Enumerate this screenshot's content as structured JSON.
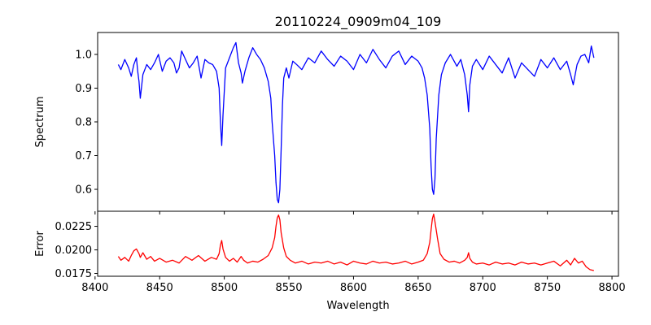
{
  "chart_data": [
    {
      "type": "line",
      "title": "20110224_0909m04_109",
      "ylabel": "Spectrum",
      "xlabel": "",
      "xlim": [
        8402,
        8805
      ],
      "ylim": [
        0.535,
        1.065
      ],
      "xticks": [
        8400,
        8450,
        8500,
        8550,
        8600,
        8650,
        8700,
        8750,
        8800
      ],
      "xtick_labels_visible": false,
      "yticks": [
        0.6,
        0.7,
        0.8,
        0.9,
        1.0
      ],
      "ytick_labels": [
        "0.6",
        "0.7",
        "0.8",
        "0.9",
        "1.0"
      ],
      "grid": false,
      "series": [
        {
          "color": "#0000ff",
          "x": [
            8418,
            8420,
            8423,
            8426,
            8428,
            8430,
            8432,
            8433,
            8434,
            8435,
            8437,
            8440,
            8443,
            8446,
            8449,
            8452,
            8455,
            8458,
            8461,
            8463,
            8465,
            8467,
            8470,
            8473,
            8476,
            8479,
            8482,
            8485,
            8488,
            8491,
            8494,
            8496,
            8497,
            8498,
            8499,
            8501,
            8504,
            8507,
            8509,
            8511,
            8513,
            8514,
            8516,
            8519,
            8522,
            8525,
            8528,
            8531,
            8534,
            8536,
            8537,
            8539,
            8540,
            8541,
            8542,
            8543,
            8544,
            8545,
            8546,
            8548,
            8550,
            8553,
            8556,
            8560,
            8565,
            8570,
            8575,
            8580,
            8585,
            8590,
            8595,
            8600,
            8605,
            8610,
            8615,
            8620,
            8625,
            8630,
            8635,
            8640,
            8645,
            8650,
            8653,
            8655,
            8657,
            8659,
            8660,
            8661,
            8662,
            8663,
            8664,
            8666,
            8668,
            8671,
            8675,
            8680,
            8683,
            8686,
            8688,
            8689,
            8690,
            8692,
            8695,
            8700,
            8705,
            8710,
            8715,
            8720,
            8725,
            8730,
            8735,
            8740,
            8745,
            8750,
            8755,
            8760,
            8765,
            8768,
            8770,
            8773,
            8776,
            8779,
            8782,
            8784,
            8786
          ],
          "y": [
            0.97,
            0.955,
            0.985,
            0.96,
            0.935,
            0.97,
            0.99,
            0.95,
            0.92,
            0.87,
            0.94,
            0.97,
            0.955,
            0.975,
            1.0,
            0.95,
            0.98,
            0.99,
            0.975,
            0.945,
            0.96,
            1.01,
            0.985,
            0.96,
            0.975,
            0.995,
            0.93,
            0.985,
            0.975,
            0.97,
            0.95,
            0.9,
            0.8,
            0.73,
            0.82,
            0.96,
            0.99,
            1.02,
            1.035,
            0.975,
            0.945,
            0.915,
            0.95,
            0.99,
            1.02,
            1.0,
            0.985,
            0.96,
            0.92,
            0.87,
            0.8,
            0.7,
            0.62,
            0.57,
            0.56,
            0.6,
            0.72,
            0.85,
            0.93,
            0.96,
            0.93,
            0.98,
            0.97,
            0.955,
            0.99,
            0.975,
            1.01,
            0.985,
            0.965,
            0.995,
            0.98,
            0.955,
            1.0,
            0.975,
            1.015,
            0.985,
            0.96,
            0.995,
            1.01,
            0.97,
            0.995,
            0.98,
            0.96,
            0.93,
            0.88,
            0.78,
            0.67,
            0.6,
            0.585,
            0.63,
            0.75,
            0.88,
            0.94,
            0.975,
            1.0,
            0.965,
            0.985,
            0.94,
            0.88,
            0.83,
            0.91,
            0.965,
            0.985,
            0.955,
            0.995,
            0.97,
            0.945,
            0.99,
            0.93,
            0.975,
            0.955,
            0.935,
            0.985,
            0.96,
            0.99,
            0.955,
            0.98,
            0.94,
            0.91,
            0.97,
            0.995,
            1.0,
            0.975,
            1.025,
            0.99
          ]
        }
      ]
    },
    {
      "type": "line",
      "title": "",
      "ylabel": "Error",
      "xlabel": "Wavelength",
      "xlim": [
        8402,
        8805
      ],
      "ylim": [
        0.0172,
        0.0241
      ],
      "xticks": [
        8400,
        8450,
        8500,
        8550,
        8600,
        8650,
        8700,
        8750,
        8800
      ],
      "xtick_labels": [
        "8400",
        "8450",
        "8500",
        "8550",
        "8600",
        "8650",
        "8700",
        "8750",
        "8800"
      ],
      "yticks": [
        0.0175,
        0.02,
        0.0225
      ],
      "ytick_labels": [
        "0.0175",
        "0.0200",
        "0.0225"
      ],
      "grid": false,
      "series": [
        {
          "color": "#ff0000",
          "x": [
            8418,
            8420,
            8423,
            8426,
            8428,
            8430,
            8432,
            8434,
            8435,
            8437,
            8440,
            8443,
            8446,
            8450,
            8455,
            8460,
            8465,
            8470,
            8475,
            8480,
            8485,
            8490,
            8494,
            8496,
            8497,
            8498,
            8499,
            8501,
            8504,
            8507,
            8510,
            8513,
            8515,
            8518,
            8522,
            8526,
            8530,
            8534,
            8537,
            8539,
            8540,
            8541,
            8542,
            8543,
            8544,
            8546,
            8548,
            8551,
            8555,
            8560,
            8565,
            8570,
            8575,
            8580,
            8585,
            8590,
            8595,
            8600,
            8605,
            8610,
            8615,
            8620,
            8625,
            8630,
            8635,
            8640,
            8645,
            8650,
            8654,
            8657,
            8659,
            8660,
            8661,
            8662,
            8663,
            8665,
            8667,
            8670,
            8674,
            8678,
            8682,
            8686,
            8688,
            8689,
            8690,
            8692,
            8695,
            8700,
            8705,
            8710,
            8715,
            8720,
            8725,
            8730,
            8735,
            8740,
            8745,
            8750,
            8755,
            8760,
            8765,
            8768,
            8771,
            8774,
            8777,
            8780,
            8783,
            8786
          ],
          "y": [
            0.0193,
            0.0189,
            0.0192,
            0.0188,
            0.0194,
            0.0199,
            0.0201,
            0.0196,
            0.0192,
            0.0197,
            0.019,
            0.0193,
            0.0188,
            0.0191,
            0.0187,
            0.0189,
            0.0186,
            0.0193,
            0.0189,
            0.0194,
            0.0188,
            0.0192,
            0.019,
            0.0196,
            0.0205,
            0.021,
            0.0201,
            0.0192,
            0.0188,
            0.0191,
            0.0187,
            0.0193,
            0.0189,
            0.0186,
            0.0188,
            0.0187,
            0.019,
            0.0194,
            0.0202,
            0.0213,
            0.0225,
            0.0234,
            0.0237,
            0.0232,
            0.0218,
            0.0202,
            0.0193,
            0.0189,
            0.0186,
            0.0188,
            0.0185,
            0.0187,
            0.0186,
            0.0188,
            0.0185,
            0.0187,
            0.0184,
            0.0188,
            0.0186,
            0.0185,
            0.0188,
            0.0186,
            0.0187,
            0.0185,
            0.0186,
            0.0188,
            0.0185,
            0.0187,
            0.0189,
            0.0196,
            0.0208,
            0.0221,
            0.0233,
            0.0238,
            0.023,
            0.0212,
            0.0196,
            0.019,
            0.0187,
            0.0188,
            0.0186,
            0.0189,
            0.0192,
            0.0197,
            0.0191,
            0.0187,
            0.0185,
            0.0186,
            0.0184,
            0.0187,
            0.0185,
            0.0186,
            0.0184,
            0.0187,
            0.0185,
            0.0186,
            0.0184,
            0.0186,
            0.0188,
            0.0183,
            0.0189,
            0.0184,
            0.0191,
            0.0186,
            0.0188,
            0.0182,
            0.0179,
            0.0178
          ]
        }
      ]
    }
  ]
}
